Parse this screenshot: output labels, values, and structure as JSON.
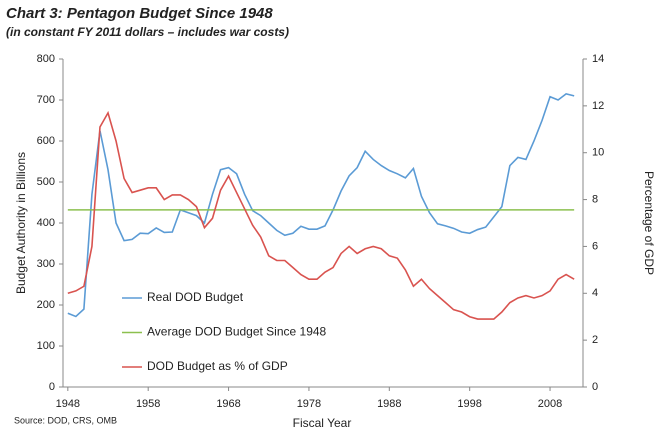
{
  "chart_data": {
    "type": "line",
    "title": "Chart 3: Pentagon Budget Since 1948",
    "subtitle": "(in constant FY 2011 dollars – includes war costs)",
    "x_label": "Fiscal Year",
    "y_label": "Budget Authority in Billions",
    "y2_label": "Percentage of GDP",
    "source": "Source: DOD, CRS, OMB",
    "x": [
      1948,
      1949,
      1950,
      1951,
      1952,
      1953,
      1954,
      1955,
      1956,
      1957,
      1958,
      1959,
      1960,
      1961,
      1962,
      1963,
      1964,
      1965,
      1966,
      1967,
      1968,
      1969,
      1970,
      1971,
      1972,
      1973,
      1974,
      1975,
      1976,
      1977,
      1978,
      1979,
      1980,
      1981,
      1982,
      1983,
      1984,
      1985,
      1986,
      1987,
      1988,
      1989,
      1990,
      1991,
      1992,
      1993,
      1994,
      1995,
      1996,
      1997,
      1998,
      1999,
      2000,
      2001,
      2002,
      2003,
      2004,
      2005,
      2006,
      2007,
      2008,
      2009,
      2010,
      2011
    ],
    "xlim": [
      1947.4,
      2012.1
    ],
    "xticks": [
      1948,
      1958,
      1968,
      1978,
      1988,
      1998,
      2008
    ],
    "ylim": [
      0,
      800
    ],
    "yticks": [
      0,
      100,
      200,
      300,
      400,
      500,
      600,
      700,
      800
    ],
    "y2lim": [
      0,
      14
    ],
    "y2ticks": [
      0,
      2,
      4,
      6,
      8,
      10,
      12,
      14
    ],
    "grid": false,
    "series": [
      {
        "name": "Real DOD Budget",
        "color": "#5b9bd5",
        "values": [
          180,
          172,
          190,
          470,
          625,
          530,
          400,
          357,
          360,
          375,
          374,
          388,
          377,
          378,
          432,
          425,
          418,
          400,
          470,
          530,
          535,
          520,
          470,
          430,
          418,
          400,
          382,
          370,
          375,
          392,
          385,
          385,
          393,
          432,
          478,
          515,
          535,
          575,
          555,
          540,
          528,
          520,
          510,
          533,
          465,
          425,
          398,
          393,
          387,
          378,
          375,
          384,
          390,
          415,
          440,
          540,
          560,
          555,
          600,
          650,
          708,
          700,
          715,
          710
        ]
      },
      {
        "name": "Average DOD Budget Since 1948",
        "color": "#8cc04f",
        "x": [
          1948,
          2011
        ],
        "values": [
          432,
          432
        ]
      },
      {
        "name": "DOD Budget as % of GDP",
        "color": "#d9534f",
        "axis": "y2",
        "values": [
          4.0,
          4.1,
          4.3,
          6.0,
          11.1,
          11.7,
          10.5,
          8.9,
          8.3,
          8.4,
          8.5,
          8.5,
          8.0,
          8.2,
          8.2,
          8.0,
          7.7,
          6.8,
          7.2,
          8.4,
          9.0,
          8.3,
          7.6,
          6.9,
          6.4,
          5.6,
          5.4,
          5.4,
          5.1,
          4.8,
          4.6,
          4.6,
          4.9,
          5.1,
          5.7,
          6.0,
          5.7,
          5.9,
          6.0,
          5.9,
          5.6,
          5.5,
          5.0,
          4.3,
          4.6,
          4.2,
          3.9,
          3.6,
          3.3,
          3.2,
          3.0,
          2.9,
          2.9,
          2.9,
          3.2,
          3.6,
          3.8,
          3.9,
          3.8,
          3.9,
          4.1,
          4.6,
          4.8,
          4.6
        ]
      }
    ]
  }
}
